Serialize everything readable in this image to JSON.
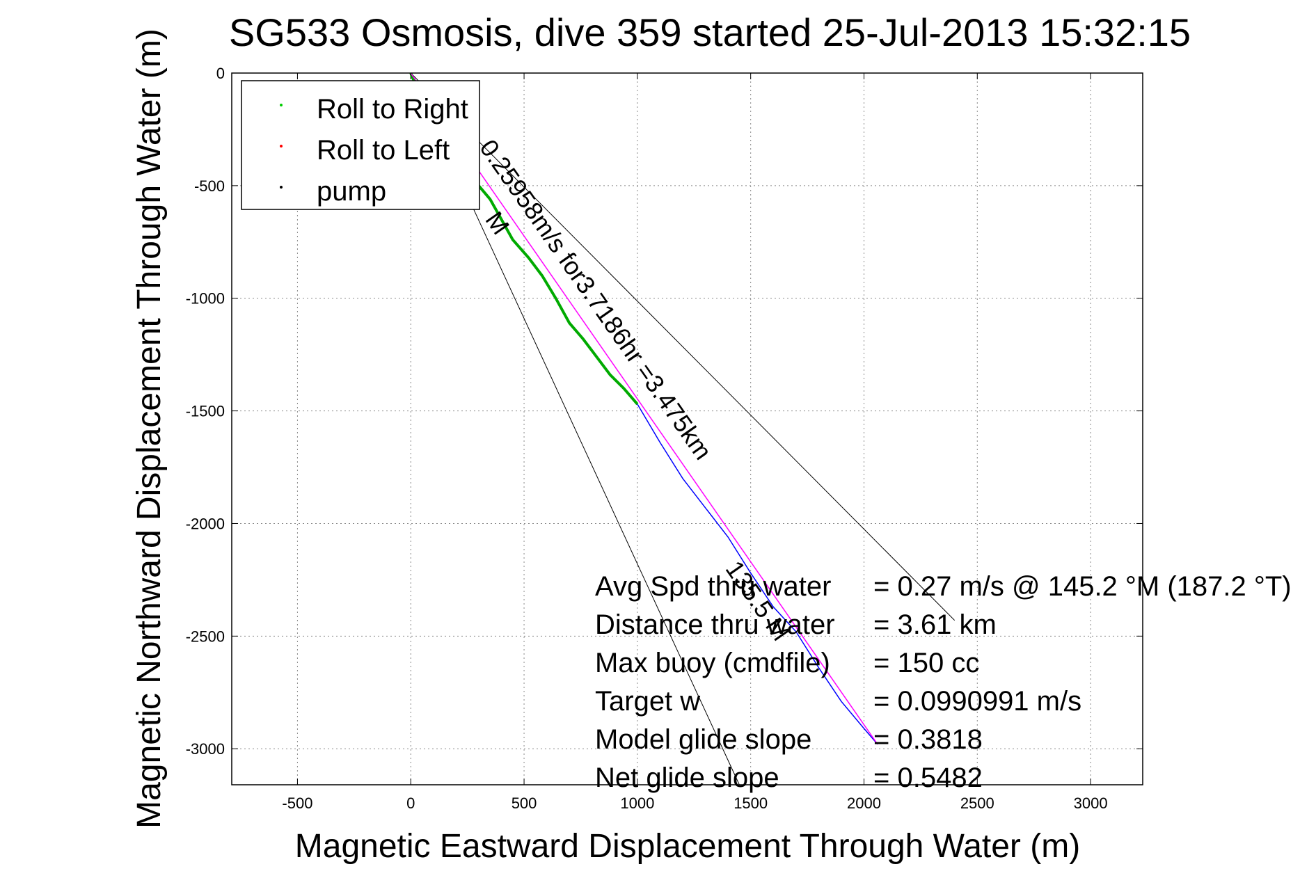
{
  "chart_data": {
    "type": "line",
    "title": "SG533 Osmosis, dive 359 started 25-Jul-2013 15:32:15",
    "xlabel": "Magnetic Eastward Displacement Through Water (m)",
    "ylabel": "Magnetic Northward Displacement Through Water (m)",
    "xlim": [
      -790,
      3230
    ],
    "ylim": [
      -3160,
      0
    ],
    "xticks": [
      -500,
      0,
      500,
      1000,
      1500,
      2000,
      2500,
      3000
    ],
    "yticks": [
      0,
      -500,
      -1000,
      -1500,
      -2000,
      -2500,
      -3000
    ],
    "xtick_labels": [
      "-500",
      "0",
      "500",
      "1000",
      "1500",
      "2000",
      "2500",
      "3000"
    ],
    "ytick_labels": [
      "0",
      "-500",
      "-1000",
      "-1500",
      "-2000",
      "-2500",
      "-3000"
    ],
    "grid": true,
    "legend": {
      "position": "top-left",
      "entries": [
        {
          "label": "Roll to Right",
          "color": "#00cc00"
        },
        {
          "label": "Roll to Left",
          "color": "#ff0000"
        },
        {
          "label": "pump",
          "color": "#000000"
        }
      ]
    },
    "series": [
      {
        "color": "#00aa00",
        "x": [
          0,
          40,
          90,
          140,
          200,
          260,
          300,
          350,
          400,
          450,
          520,
          580,
          640,
          700,
          760,
          820,
          880,
          940,
          1000
        ],
        "y": [
          0,
          -100,
          -180,
          -270,
          -360,
          -440,
          -500,
          -560,
          -650,
          -740,
          -820,
          -900,
          -1000,
          -1110,
          -1180,
          -1260,
          -1340,
          -1400,
          -1470
        ]
      },
      {
        "color": "#0000ff",
        "x": [
          1000,
          1100,
          1200,
          1300,
          1400,
          1500,
          1600,
          1700,
          1800,
          1900,
          2000,
          2060
        ],
        "y": [
          -1470,
          -1640,
          -1800,
          -1930,
          -2060,
          -2220,
          -2370,
          -2480,
          -2640,
          -2790,
          -2910,
          -2980
        ]
      },
      {
        "color": "#ff00ff",
        "x": [
          0,
          2060
        ],
        "y": [
          0,
          -2980
        ]
      }
    ],
    "reference_lines": [
      {
        "x": [
          0,
          2400
        ],
        "y": [
          0,
          -2430
        ]
      },
      {
        "x": [
          0,
          1450
        ],
        "y": [
          0,
          -3160
        ]
      }
    ],
    "annotations": [
      {
        "text": "0.25958m/s for3.7186hr =3.475km",
        "x": 300,
        "y": -330,
        "angle": 55
      },
      {
        "text": "135.5 M",
        "x": 1385,
        "y": -2200,
        "angle": 55
      },
      {
        "text": "M",
        "x": 325,
        "y": -650,
        "angle": 55
      }
    ],
    "stats": [
      {
        "label": "Avg Spd thru water",
        "value": "=  0.27 m/s @ 145.2 °M (187.2 °T)"
      },
      {
        "label": "Distance thru water",
        "value": "=  3.61 km"
      },
      {
        "label": "Max buoy (cmdfile)",
        "value": "= 150 cc"
      },
      {
        "label": "Target w",
        "value": "= 0.0990991 m/s"
      },
      {
        "label": "Model glide slope",
        "value": "= 0.3818"
      },
      {
        "label": "Net glide slope",
        "value": "= 0.5482"
      }
    ]
  }
}
